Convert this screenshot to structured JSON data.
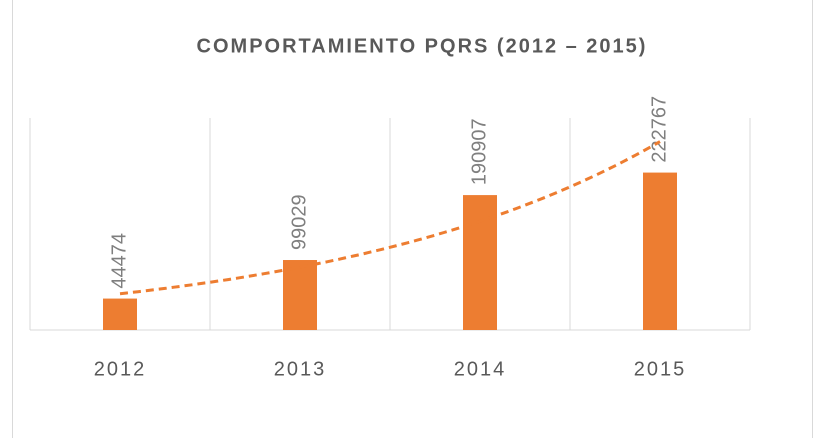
{
  "chart_data": {
    "type": "bar",
    "title": "COMPORTAMIENTO PQRS (2012 – 2015)",
    "categories": [
      "2012",
      "2013",
      "2014",
      "2015"
    ],
    "values": [
      44474,
      99029,
      190907,
      222767
    ],
    "color": "#ed7d31",
    "ylim": [
      0,
      300000
    ],
    "trendline": "exponential",
    "data_labels": true
  }
}
